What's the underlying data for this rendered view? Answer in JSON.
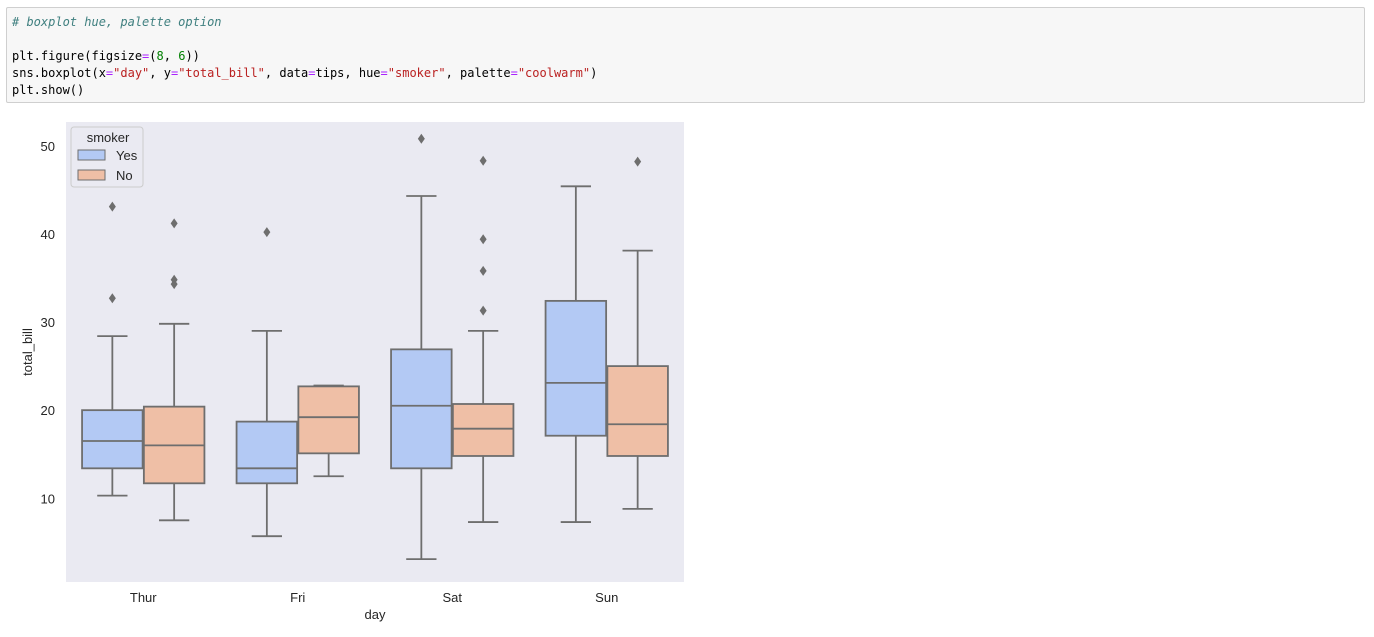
{
  "code_cell": {
    "lines": [
      [
        {
          "t": "# boxplot hue, palette option",
          "c": "comment"
        }
      ],
      [
        {
          "t": "",
          "c": "plain"
        }
      ],
      [
        {
          "t": "plt.figure(figsize",
          "c": "plain"
        },
        {
          "t": "=",
          "c": "op"
        },
        {
          "t": "(",
          "c": "plain"
        },
        {
          "t": "8",
          "c": "num"
        },
        {
          "t": ", ",
          "c": "plain"
        },
        {
          "t": "6",
          "c": "num"
        },
        {
          "t": "))",
          "c": "plain"
        }
      ],
      [
        {
          "t": "sns.boxplot(x",
          "c": "plain"
        },
        {
          "t": "=",
          "c": "op"
        },
        {
          "t": "\"day\"",
          "c": "str"
        },
        {
          "t": ", y",
          "c": "plain"
        },
        {
          "t": "=",
          "c": "op"
        },
        {
          "t": "\"total_bill\"",
          "c": "str"
        },
        {
          "t": ", data",
          "c": "plain"
        },
        {
          "t": "=",
          "c": "op"
        },
        {
          "t": "tips, hue",
          "c": "plain"
        },
        {
          "t": "=",
          "c": "op"
        },
        {
          "t": "\"smoker\"",
          "c": "str"
        },
        {
          "t": ", palette",
          "c": "plain"
        },
        {
          "t": "=",
          "c": "op"
        },
        {
          "t": "\"coolwarm\"",
          "c": "str"
        },
        {
          "t": ")",
          "c": "plain"
        }
      ],
      [
        {
          "t": "plt.show()",
          "c": "plain"
        }
      ]
    ]
  },
  "colors": {
    "axes_bg": "#eaeaf2",
    "box_edge": "#6e6e6e",
    "yes_fill": "#b3c9f4",
    "no_fill": "#efbfa6",
    "legend_bg": "#eaeaf2",
    "legend_edge": "#cccccc"
  },
  "chart_data": {
    "type": "boxplot",
    "title": "",
    "xlabel": "day",
    "ylabel": "total_bill",
    "ylim": [
      0.5,
      52.7
    ],
    "yticks": [
      10,
      20,
      30,
      40,
      50
    ],
    "grid": false,
    "categories": [
      "Thur",
      "Fri",
      "Sat",
      "Sun"
    ],
    "legend": {
      "title": "smoker",
      "placement": "top-left",
      "entries": [
        "Yes",
        "No"
      ]
    },
    "series": [
      {
        "name": "Yes",
        "boxes": [
          {
            "whisker_low": 10.3,
            "q1": 13.4,
            "median": 16.5,
            "q3": 20.0,
            "whisker_high": 28.4,
            "outliers": [
              32.7,
              43.1
            ]
          },
          {
            "whisker_low": 5.7,
            "q1": 11.7,
            "median": 13.4,
            "q3": 18.7,
            "whisker_high": 29.0,
            "outliers": [
              40.2
            ]
          },
          {
            "whisker_low": 3.1,
            "q1": 13.4,
            "median": 20.5,
            "q3": 26.9,
            "whisker_high": 44.3,
            "outliers": [
              50.8
            ]
          },
          {
            "whisker_low": 7.3,
            "q1": 17.1,
            "median": 23.1,
            "q3": 32.4,
            "whisker_high": 45.4,
            "outliers": []
          }
        ]
      },
      {
        "name": "No",
        "boxes": [
          {
            "whisker_low": 7.5,
            "q1": 11.7,
            "median": 16.0,
            "q3": 20.4,
            "whisker_high": 29.8,
            "outliers": [
              34.3,
              34.8,
              41.2
            ]
          },
          {
            "whisker_low": 12.5,
            "q1": 15.1,
            "median": 19.2,
            "q3": 22.7,
            "whisker_high": 22.8,
            "outliers": []
          },
          {
            "whisker_low": 7.3,
            "q1": 14.8,
            "median": 17.9,
            "q3": 20.7,
            "whisker_high": 29.0,
            "outliers": [
              31.3,
              35.8,
              39.4,
              48.3
            ]
          },
          {
            "whisker_low": 8.8,
            "q1": 14.8,
            "median": 18.4,
            "q3": 25.0,
            "whisker_high": 38.1,
            "outliers": [
              48.2
            ]
          }
        ]
      }
    ]
  }
}
